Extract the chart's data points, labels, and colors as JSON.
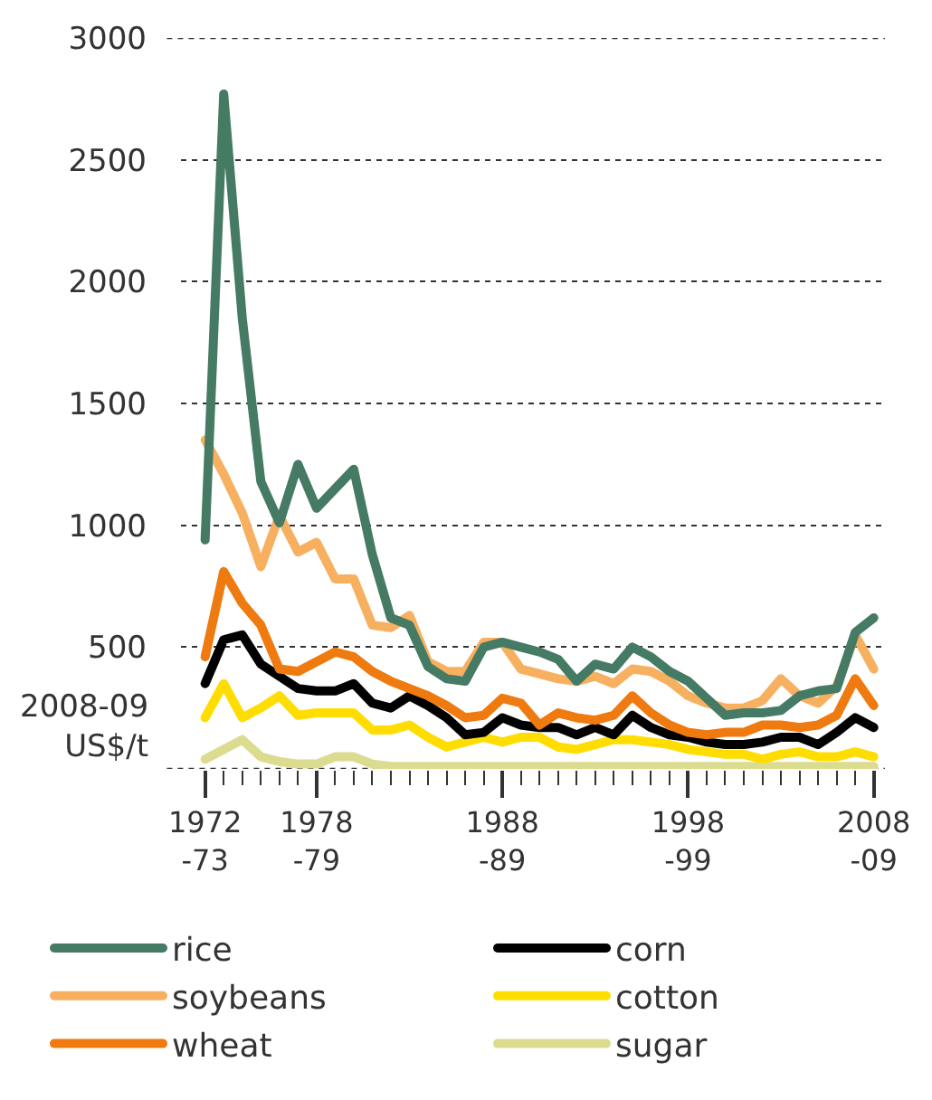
{
  "chart_data": {
    "type": "line",
    "ylabel": "2008-09\nUS$/t",
    "categories": [
      "1972\n-73",
      null,
      null,
      null,
      null,
      null,
      "1978\n-79",
      null,
      null,
      null,
      null,
      null,
      null,
      null,
      null,
      null,
      "1988\n-89",
      null,
      null,
      null,
      null,
      null,
      null,
      null,
      null,
      null,
      "1998\n-99",
      null,
      null,
      null,
      null,
      null,
      null,
      null,
      null,
      null,
      "2008\n-09"
    ],
    "series": [
      {
        "name": "rice",
        "color": "#457a64",
        "values": [
          940,
          2770,
          1850,
          1180,
          1010,
          1250,
          1070,
          1150,
          1230,
          880,
          620,
          590,
          420,
          370,
          360,
          500,
          520,
          500,
          480,
          450,
          360,
          430,
          410,
          500,
          460,
          400,
          360,
          290,
          220,
          230,
          230,
          240,
          300,
          320,
          330,
          560,
          620
        ]
      },
      {
        "name": "soybeans",
        "color": "#f7b060",
        "values": [
          1350,
          1210,
          1050,
          830,
          1040,
          890,
          930,
          780,
          780,
          590,
          580,
          630,
          440,
          400,
          400,
          520,
          520,
          410,
          390,
          370,
          360,
          380,
          350,
          410,
          400,
          360,
          300,
          270,
          250,
          250,
          280,
          370,
          300,
          270,
          340,
          550,
          410
        ]
      },
      {
        "name": "wheat",
        "color": "#ee7a10",
        "values": [
          460,
          810,
          680,
          590,
          410,
          400,
          440,
          480,
          460,
          400,
          360,
          330,
          300,
          260,
          210,
          220,
          290,
          270,
          180,
          230,
          210,
          200,
          220,
          300,
          230,
          180,
          150,
          140,
          150,
          150,
          180,
          180,
          170,
          180,
          220,
          370,
          260
        ]
      },
      {
        "name": "corn",
        "color": "#000000",
        "values": [
          350,
          530,
          550,
          430,
          380,
          330,
          320,
          320,
          350,
          270,
          250,
          300,
          260,
          210,
          140,
          150,
          210,
          180,
          170,
          170,
          140,
          170,
          140,
          220,
          170,
          140,
          130,
          110,
          100,
          100,
          110,
          130,
          130,
          100,
          150,
          210,
          170
        ]
      },
      {
        "name": "cotton",
        "color": "#ffdd00",
        "values": [
          210,
          350,
          210,
          250,
          300,
          220,
          230,
          230,
          230,
          160,
          160,
          180,
          130,
          90,
          110,
          130,
          110,
          130,
          130,
          90,
          80,
          100,
          120,
          120,
          110,
          100,
          80,
          70,
          60,
          60,
          40,
          60,
          70,
          50,
          50,
          70,
          50
        ]
      },
      {
        "name": "sugar",
        "color": "#dcdc90",
        "values": [
          40,
          80,
          120,
          50,
          30,
          20,
          20,
          50,
          50,
          20,
          10,
          10,
          10,
          10,
          10,
          10,
          10,
          10,
          10,
          10,
          10,
          10,
          10,
          10,
          10,
          10,
          10,
          10,
          10,
          10,
          10,
          10,
          10,
          10,
          10,
          10,
          10
        ]
      }
    ],
    "ylim": [
      0,
      3000
    ],
    "yticks": [
      {
        "value": 0,
        "label": null
      },
      500,
      1000,
      1500,
      2000,
      2500,
      3000
    ],
    "grid": "y",
    "legend": "bottom",
    "marker": "none",
    "line_style": "solid"
  }
}
